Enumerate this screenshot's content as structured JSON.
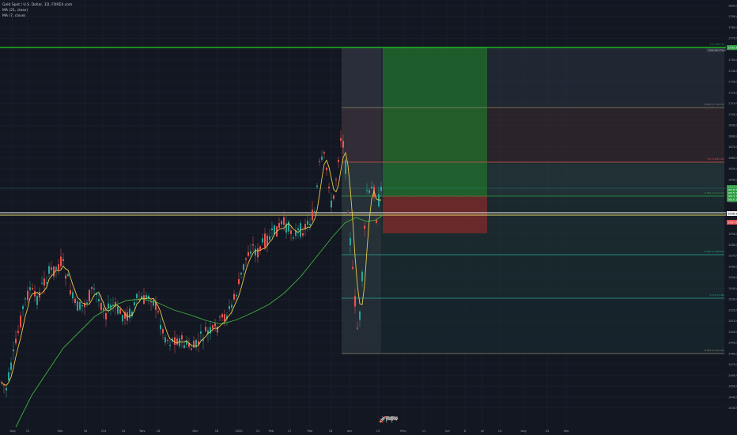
{
  "legend": {
    "title": "Gold Spot / U.S. Dollar, 1D, FOREX.com",
    "ma1": "MA (21, close)",
    "ma2": "MA (7, close)"
  },
  "price_axis": {
    "labels": [
      "1800.00",
      "1790.00",
      "1780.00",
      "1770.00",
      "1760.00",
      "1750.00",
      "1740.00",
      "1730.00",
      "1720.00",
      "1710.00",
      "1700.00",
      "1690.00",
      "1680.00",
      "1670.00",
      "1660.00",
      "1650.00",
      "1640.00",
      "1630.00",
      "1620.00",
      "1610.00",
      "1600.00",
      "1590.00",
      "1580.00",
      "1570.00",
      "1560.00",
      "1550.00",
      "1540.00",
      "1530.00",
      "1520.00",
      "1510.00",
      "1500.00",
      "1490.00",
      "1480.00",
      "1470.00",
      "1460.00",
      "1450.00",
      "1440.00",
      "1430.00"
    ],
    "badges": [
      {
        "text": "1755.72",
        "color": "#2ea043"
      },
      {
        "text": "1624.94",
        "color": "#2ea043"
      },
      {
        "text": "1618.57",
        "color": "#2ea043"
      },
      {
        "text": "1615.75",
        "color": "#2ea043"
      },
      {
        "text": "1613.10",
        "color": "#2ea043"
      },
      {
        "text": "1610.14",
        "color": "#2ea043"
      },
      {
        "text": "1596.32",
        "color": "#eeeeee"
      },
      {
        "text": "1587.62",
        "color": "#e54b4b"
      }
    ]
  },
  "time_axis": {
    "labels": [
      "Aug",
      "13",
      "Sep",
      "16",
      "Oct",
      "14",
      "Nov",
      "18",
      "Dec",
      "16",
      "2020",
      "13",
      "Feb",
      "17",
      "Mar",
      "16",
      "Apr",
      "13",
      "May",
      "11",
      "Jun",
      "8",
      "Jul",
      "14",
      "Aug",
      "24",
      "Sep"
    ]
  },
  "fib_labels": [
    {
      "text": "1 (1,755.72)",
      "color": "#2ea043"
    },
    {
      "text": "0.618 (1,710.18)",
      "color": "#8a8a6a"
    },
    {
      "text": "0.5 (1,641.40)",
      "color": "#d9534f"
    },
    {
      "text": "0.382 (1,617.13)",
      "color": "#2ea043"
    },
    {
      "text": "0.236 (1,568.05)",
      "color": "#26a69a"
    },
    {
      "text": "0 (1,517.46)",
      "color": "#26a69a"
    },
    {
      "text": "-0.618 (1,452.48)",
      "color": "#8a8a6a"
    }
  ],
  "target_label": "1999.99/1756 ?",
  "colors": {
    "background": "#131722",
    "bull": "#26a69a",
    "bear": "#ef5350",
    "ma_fast": "#e6c84a",
    "ma_slow": "#3fae3f",
    "green_line": "#1fd11f",
    "white_line": "#f0f0f0",
    "yellow_line": "#e6d86b"
  },
  "icons": [
    "rocket-icon",
    "flag-icon",
    "flag-icon"
  ]
}
